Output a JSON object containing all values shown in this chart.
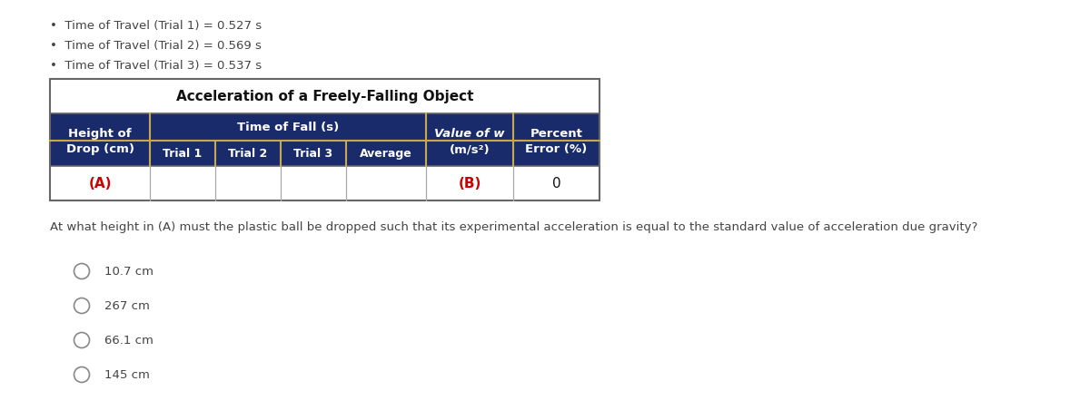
{
  "bullet_points": [
    "Time of Travel (Trial 1) = 0.527 s",
    "Time of Travel (Trial 2) = 0.569 s",
    "Time of Travel (Trial 3) = 0.537 s"
  ],
  "table_title": "Acceleration of a Freely-Falling Object",
  "question": "At what height in (A) must the plastic ball be dropped such that its experimental acceleration is equal to the standard value of acceleration due gravity?",
  "options": [
    "10.7 cm",
    "267 cm",
    "66.1 cm",
    "145 cm"
  ],
  "navy_color": "#1a2b6b",
  "gold_color": "#c8a84b",
  "white_color": "#ffffff",
  "red_color": "#cc0000",
  "black_color": "#111111",
  "bg_color": "#ffffff",
  "text_color": "#444444",
  "border_color": "#666666"
}
